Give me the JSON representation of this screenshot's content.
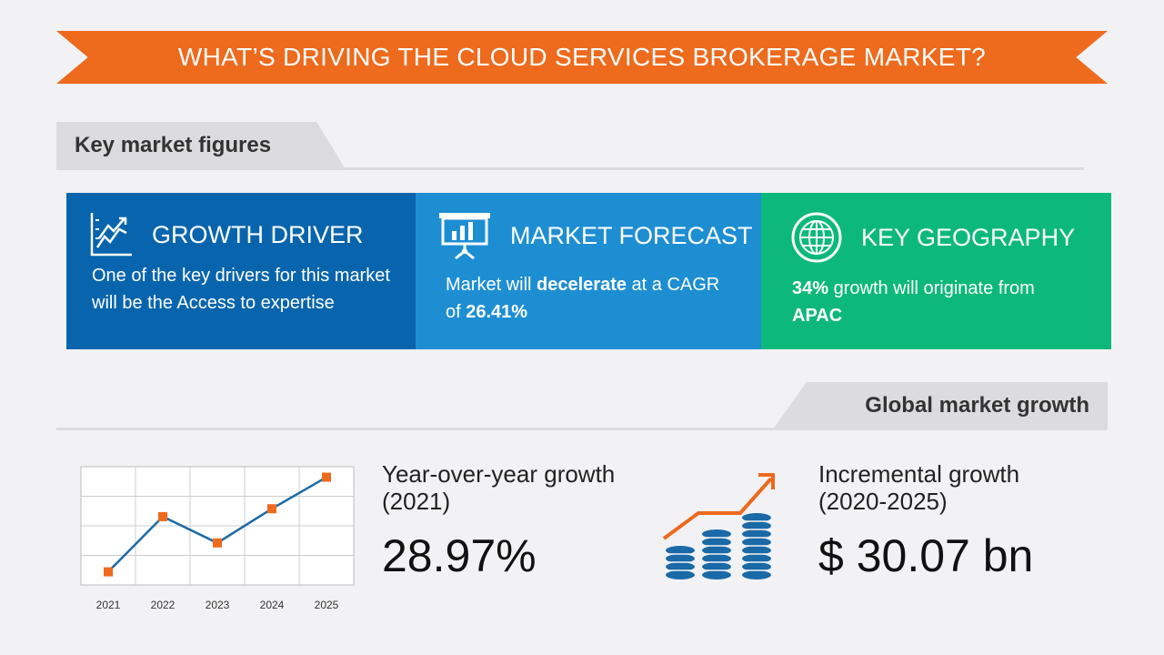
{
  "header": {
    "title": "WHAT’S DRIVING THE CLOUD SERVICES BROKERAGE MARKET?"
  },
  "key_figures": {
    "heading": "Key market figures"
  },
  "cards": {
    "growth_driver": {
      "title": "GROWTH DRIVER",
      "text": "One of the key drivers for this market will be the Access to expertise",
      "color": "#0865ad",
      "icon": "growth-chart-icon"
    },
    "market_forecast": {
      "title": "MARKET FORECAST",
      "text_before": "Market will",
      "bold_word": "decelerate",
      "text_middle": "at a CAGR of",
      "cagr": "26.41%",
      "color": "#1e8ed3",
      "icon": "presentation-board-icon"
    },
    "key_geography": {
      "title": "KEY GEOGRAPHY",
      "share": "34%",
      "text_middle": "growth will originate from",
      "region": "APAC",
      "color": "#0cb97a",
      "icon": "globe-icon"
    }
  },
  "global_growth": {
    "heading": "Global market growth"
  },
  "yoy": {
    "label": "Year-over-year growth (2021)",
    "value": "28.97%"
  },
  "incremental": {
    "label": "Incremental growth (2020-2025)",
    "value": "$ 30.07 bn",
    "icon": "coin-stacks-growth-icon"
  },
  "chart_data": {
    "type": "line",
    "categories": [
      "2021",
      "2022",
      "2023",
      "2024",
      "2025"
    ],
    "series": [
      {
        "values": [
          0.5,
          2.6,
          1.6,
          2.9,
          4.1
        ]
      }
    ],
    "ylim": [
      0,
      4.5
    ],
    "grid": true,
    "line_color": "#1a6aa8",
    "marker_color": "#ee6a1d"
  }
}
